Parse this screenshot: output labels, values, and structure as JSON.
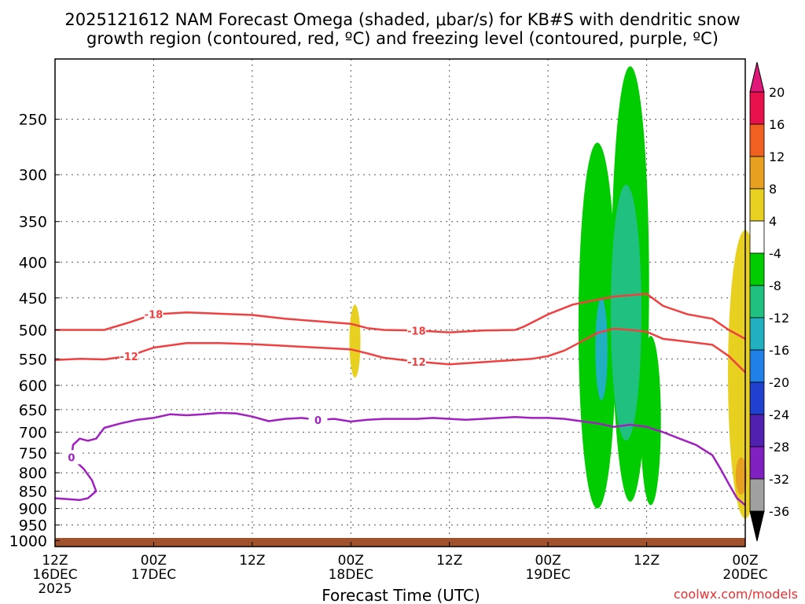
{
  "title_line1": "2025121612 NAM Forecast Omega (shaded, μbar/s) for KB#S with dendritic snow",
  "title_line2": "growth region (contoured, red, ºC) and freezing level (contoured, purple, ºC)",
  "xlabel": "Forecast Time (UTC)",
  "credit": "coolwx.com/models",
  "x_ticks": [
    {
      "t": 0,
      "lines": [
        "12Z",
        "16DEC",
        "2025"
      ]
    },
    {
      "t": 12,
      "lines": [
        "00Z",
        "17DEC"
      ]
    },
    {
      "t": 24,
      "lines": [
        "12Z"
      ]
    },
    {
      "t": 36,
      "lines": [
        "00Z",
        "18DEC"
      ]
    },
    {
      "t": 48,
      "lines": [
        "12Z"
      ]
    },
    {
      "t": 60,
      "lines": [
        "00Z",
        "19DEC"
      ]
    },
    {
      "t": 72,
      "lines": [
        "12Z"
      ]
    },
    {
      "t": 84,
      "lines": [
        "00Z",
        "20DEC"
      ]
    }
  ],
  "colorbar_labels": [
    "20",
    "16",
    "12",
    "8",
    "4",
    "-4",
    "-8",
    "-12",
    "-16",
    "-20",
    "-24",
    "-28",
    "-32",
    "-36"
  ],
  "colorbar_colors": [
    "#e8104a",
    "#f06020",
    "#e8a020",
    "#e8d020",
    "#ffffff",
    "#00cc00",
    "#20c080",
    "#20b0c0",
    "#2080e8",
    "#2040d0",
    "#5020b0",
    "#8020c0",
    "#a0a0a0"
  ],
  "colorbar_top_color": "#e0187a",
  "colorbar_bottom_color": "#000000",
  "ground_color": "#a0522d",
  "chart_data": {
    "type": "contour",
    "title": "2025121612 NAM Forecast Omega (shaded, μbar/s) for KB#S with dendritic snow growth region (contoured, red, ºC) and freezing level (contoured, purple, ºC)",
    "xlabel": "Forecast Time (UTC)",
    "ylabel": "",
    "x_units": "forecast hour from 2025121612",
    "xlim": [
      0,
      84
    ],
    "ylim": [
      1020,
      205
    ],
    "y_scale": "log",
    "y_ticks": [
      250,
      300,
      350,
      400,
      450,
      500,
      550,
      600,
      650,
      700,
      750,
      800,
      850,
      900,
      950,
      1000
    ],
    "grid": true,
    "contours": [
      {
        "label": "-18",
        "color": "#f04040",
        "points": [
          [
            0,
            500
          ],
          [
            6,
            500
          ],
          [
            9,
            488
          ],
          [
            12,
            475
          ],
          [
            16,
            472
          ],
          [
            20,
            474
          ],
          [
            24,
            476
          ],
          [
            28,
            482
          ],
          [
            32,
            486
          ],
          [
            36,
            490
          ],
          [
            38,
            497
          ],
          [
            40,
            500
          ],
          [
            44,
            501
          ],
          [
            48,
            504
          ],
          [
            52,
            501
          ],
          [
            56,
            500
          ],
          [
            57,
            495
          ],
          [
            60,
            475
          ],
          [
            63,
            460
          ],
          [
            65,
            455
          ],
          [
            68,
            448
          ],
          [
            72,
            444
          ],
          [
            74,
            462
          ],
          [
            77,
            475
          ],
          [
            80,
            482
          ],
          [
            82,
            500
          ],
          [
            84,
            515
          ]
        ]
      },
      {
        "label": "-12",
        "color": "#f04040",
        "points": [
          [
            0,
            552
          ],
          [
            3,
            550
          ],
          [
            6,
            551
          ],
          [
            9,
            545
          ],
          [
            12,
            530
          ],
          [
            16,
            522
          ],
          [
            20,
            522
          ],
          [
            24,
            524
          ],
          [
            28,
            527
          ],
          [
            32,
            530
          ],
          [
            36,
            533
          ],
          [
            38,
            540
          ],
          [
            40,
            548
          ],
          [
            44,
            555
          ],
          [
            48,
            560
          ],
          [
            52,
            556
          ],
          [
            56,
            552
          ],
          [
            58,
            550
          ],
          [
            60,
            545
          ],
          [
            62,
            535
          ],
          [
            64,
            520
          ],
          [
            66,
            505
          ],
          [
            68,
            498
          ],
          [
            70,
            500
          ],
          [
            72,
            503
          ],
          [
            74,
            515
          ],
          [
            76,
            518
          ],
          [
            80,
            525
          ],
          [
            82,
            545
          ],
          [
            84,
            575
          ]
        ]
      },
      {
        "label": "0",
        "color": "#a020c0",
        "points": [
          [
            0,
            870
          ],
          [
            3,
            875
          ],
          [
            4,
            870
          ],
          [
            5,
            850
          ],
          [
            4.5,
            820
          ],
          [
            3.5,
            790
          ],
          [
            2,
            760
          ],
          [
            2.2,
            730
          ],
          [
            3,
            715
          ],
          [
            4,
            720
          ],
          [
            5,
            715
          ],
          [
            6,
            690
          ],
          [
            8,
            680
          ],
          [
            10,
            672
          ],
          [
            12,
            668
          ],
          [
            14,
            660
          ],
          [
            16,
            662
          ],
          [
            18,
            660
          ],
          [
            20,
            657
          ],
          [
            22,
            658
          ],
          [
            24,
            665
          ],
          [
            26,
            675
          ],
          [
            28,
            670
          ],
          [
            30,
            668
          ],
          [
            32,
            672
          ],
          [
            34,
            670
          ],
          [
            36,
            676
          ],
          [
            38,
            672
          ],
          [
            40,
            670
          ],
          [
            42,
            670
          ],
          [
            44,
            670
          ],
          [
            46,
            668
          ],
          [
            48,
            670
          ],
          [
            50,
            672
          ],
          [
            52,
            670
          ],
          [
            54,
            668
          ],
          [
            56,
            666
          ],
          [
            58,
            668
          ],
          [
            60,
            668
          ],
          [
            62,
            670
          ],
          [
            64,
            675
          ],
          [
            66,
            680
          ],
          [
            68,
            688
          ],
          [
            70,
            683
          ],
          [
            72,
            688
          ],
          [
            74,
            700
          ],
          [
            76,
            715
          ],
          [
            78,
            730
          ],
          [
            80,
            755
          ],
          [
            81,
            790
          ],
          [
            82,
            830
          ],
          [
            83,
            870
          ],
          [
            84,
            890
          ]
        ]
      }
    ],
    "omega_shading": [
      {
        "value_range": [
          4,
          8
        ],
        "color": "#e8d020",
        "x_center": 36.5,
        "p_range": [
          460,
          585
        ]
      },
      {
        "value_range": [
          -8,
          -4
        ],
        "color": "#00cc00",
        "x_center": 66,
        "p_range": [
          270,
          900
        ]
      },
      {
        "value_range": [
          -8,
          -4
        ],
        "color": "#00cc00",
        "x_center": 70,
        "p_range": [
          210,
          880
        ]
      },
      {
        "value_range": [
          -12,
          -8
        ],
        "color": "#20c080",
        "x_center": 69.5,
        "p_range": [
          310,
          720
        ]
      },
      {
        "value_range": [
          -16,
          -12
        ],
        "color": "#20b0c0",
        "x_center": 66.5,
        "p_range": [
          450,
          630
        ]
      },
      {
        "value_range": [
          -8,
          -4
        ],
        "color": "#00cc00",
        "x_center": 72.5,
        "p_range": [
          510,
          890
        ]
      },
      {
        "value_range": [
          4,
          8
        ],
        "color": "#e8d020",
        "x_center": 84,
        "p_range": [
          360,
          930
        ]
      },
      {
        "value_range": [
          8,
          12
        ],
        "color": "#e8a020",
        "x_center": 83.5,
        "p_range": [
          760,
          860
        ]
      }
    ]
  }
}
